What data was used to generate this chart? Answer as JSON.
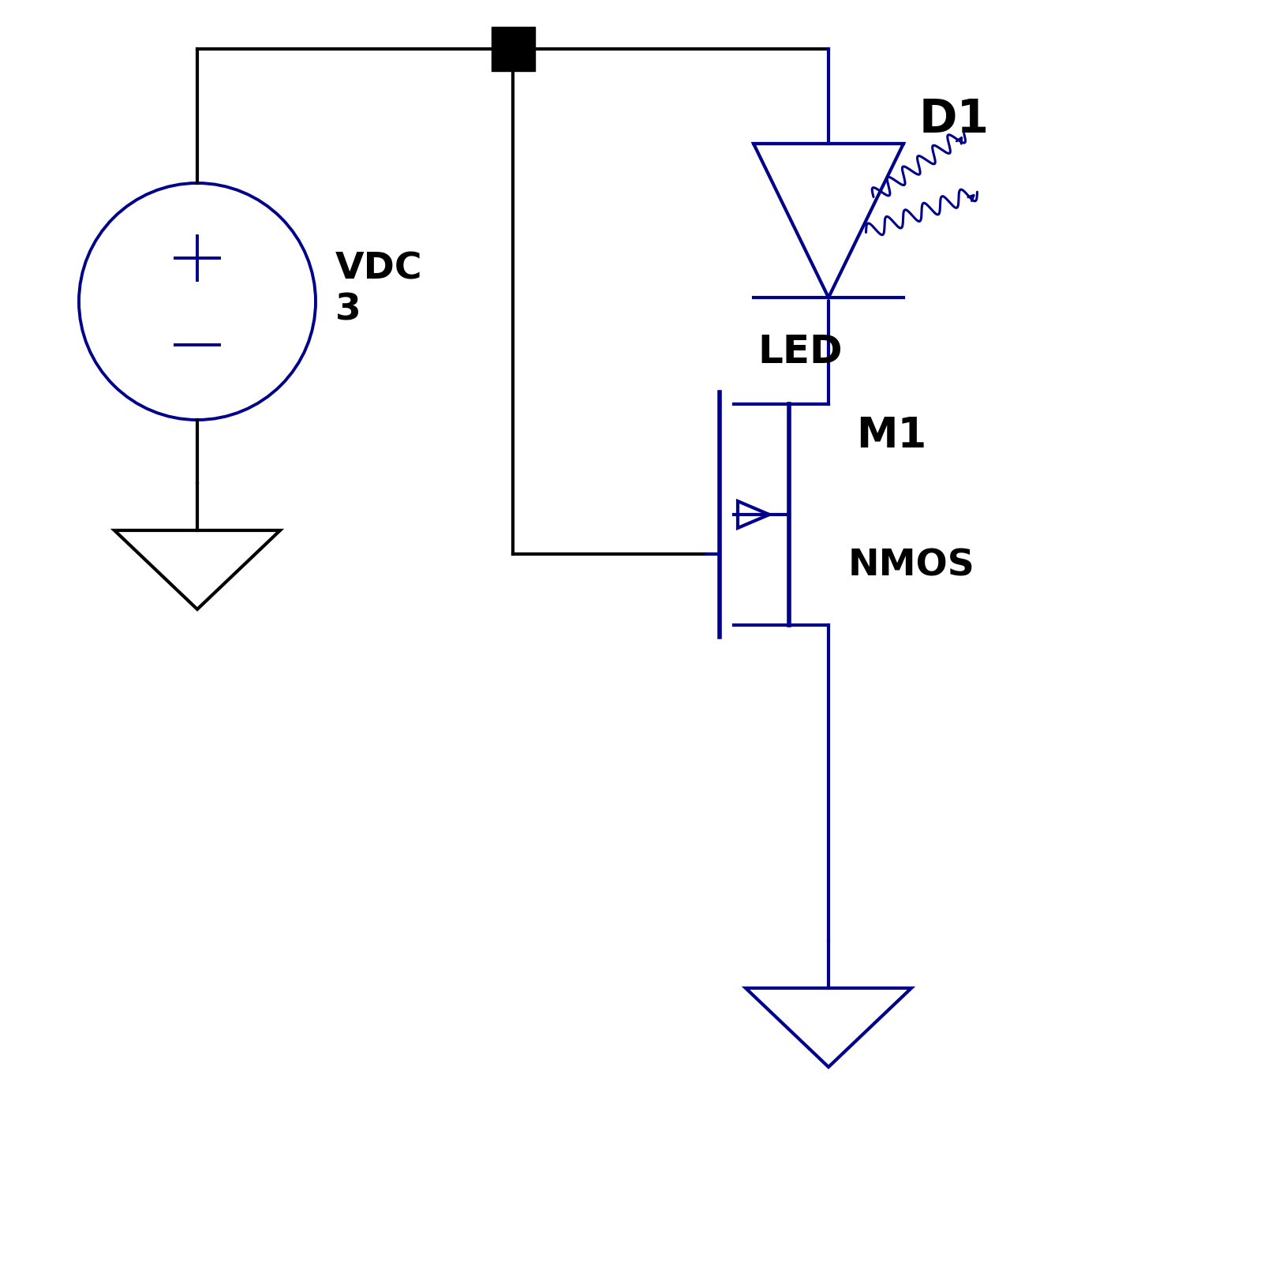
{
  "bg_color": "#ffffff",
  "wire_color_black": "#000000",
  "wire_color_blue": "#00008B",
  "text_color_black": "#000000",
  "fig_width": 16.08,
  "fig_height": 16.32,
  "vdc_label": "VDC\n3",
  "d1_label": "D1",
  "led_label": "LED",
  "m1_label": "M1",
  "nmos_label": "NMOS"
}
